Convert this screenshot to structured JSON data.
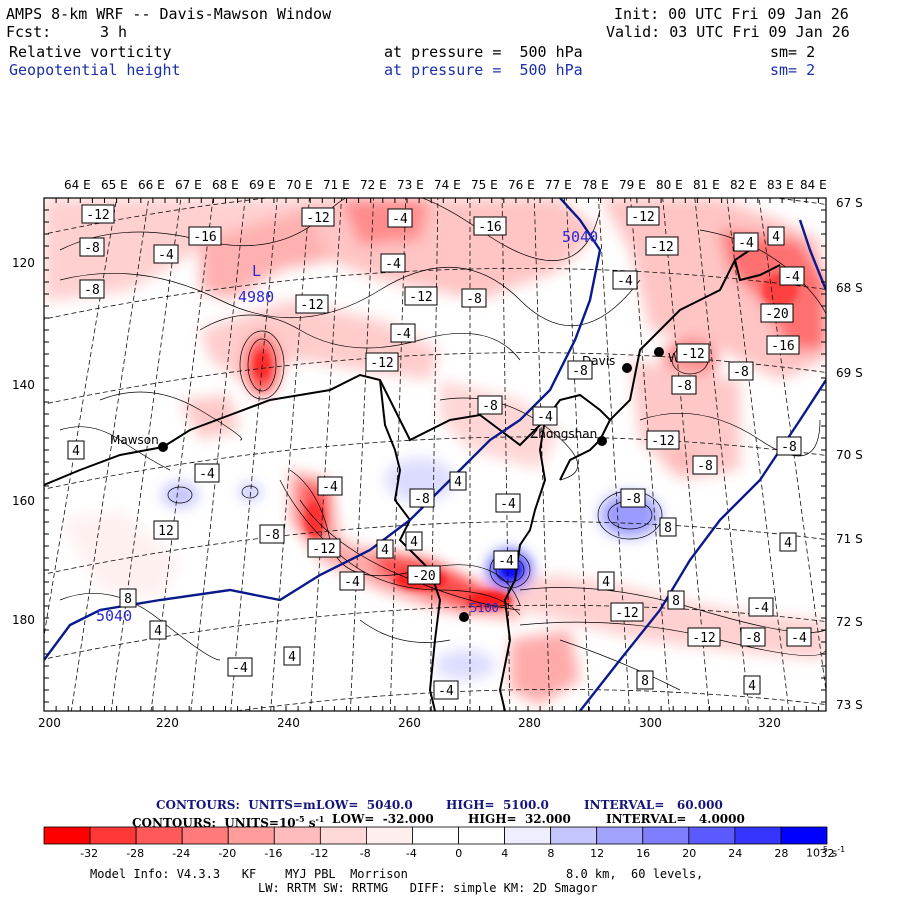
{
  "header": {
    "title": "AMPS 8-km WRF -- Davis-Mawson Window",
    "init": "Init: 00 UTC Fri 09 Jan 26",
    "fcst_label": "Fcst:",
    "fcst_value": "3 h",
    "valid": "Valid: 03 UTC Fri 09 Jan 26",
    "field1": {
      "name": "Relative vorticity",
      "pressure": "at pressure =  500 hPa",
      "smooth": "sm= 2"
    },
    "field2": {
      "name": "Geopotential height",
      "pressure": "at pressure =  500 hPa",
      "smooth": "sm= 2"
    }
  },
  "axes": {
    "top_lon": [
      "64 E",
      "65 E",
      "66 E",
      "67 E",
      "68 E",
      "69 E",
      "70 E",
      "71 E",
      "72 E",
      "73 E",
      "74 E",
      "75 E",
      "76 E",
      "77 E",
      "78 E",
      "79 E",
      "80 E",
      "81 E",
      "82 E",
      "83 E",
      "84 E"
    ],
    "right_lat": [
      "67 S",
      "68 S",
      "69 S",
      "70 S",
      "71 S",
      "72 S",
      "73 S"
    ],
    "left_y": [
      "120",
      "140",
      "160",
      "180"
    ],
    "bottom_x": [
      "200",
      "220",
      "240",
      "260",
      "280",
      "300",
      "320"
    ]
  },
  "map": {
    "stations": [
      {
        "name": "Mawson",
        "key": "mawson"
      },
      {
        "name": "Davis",
        "key": "davis"
      },
      {
        "name": "Zhongshan",
        "key": "zhongshan"
      },
      {
        "name": "WHP",
        "key": "whp"
      }
    ],
    "low_marker": {
      "symbol": "L",
      "value": "4980"
    },
    "height_labels": [
      "5040",
      "5040",
      "5100"
    ],
    "vort_labels": [
      "-12",
      "-8",
      "-4",
      "-8",
      "-16",
      "-12",
      "-4",
      "-16",
      "-12",
      "-12",
      "-4",
      "4",
      "-4",
      "-4",
      "-12",
      "-8",
      "-12",
      "-4",
      "-12",
      "-8",
      "-20",
      "-16",
      "-12",
      "-8",
      "-8",
      "-8",
      "-4",
      "-12",
      "-8",
      "-8",
      "-4",
      "4",
      "-4",
      "-4",
      "-8",
      "12",
      "8",
      "-8",
      "-8",
      "-12",
      "4",
      "-4",
      "4",
      "-4",
      "-20",
      "4",
      "-4",
      "8",
      "4",
      "-12",
      "-12",
      "-8",
      "-4",
      "-4",
      "4",
      "8",
      "4",
      "-4",
      "4",
      "-4",
      "8",
      "4"
    ]
  },
  "contour_info": {
    "line1": {
      "label": "CONTOURS:  UNITS=m",
      "low": "LOW=  5040.0",
      "high": "HIGH=  5100.0",
      "interval": "INTERVAL=   60.000"
    },
    "line2": {
      "label": "CONTOURS:  UNITS=10",
      "exp": "-5",
      "units_tail": " s",
      "exp2": "-1",
      "low": "LOW=  -32.000",
      "high": "HIGH=  32.000",
      "interval": "INTERVAL=   4.0000"
    }
  },
  "colorbar": {
    "colors": [
      "#ff0000",
      "#ff3737",
      "#ff5a5a",
      "#ff7a7a",
      "#ff9c9c",
      "#ffbcbc",
      "#ffd8d8",
      "#ffeeee",
      "#ffffff",
      "#ffffff",
      "#eeeeff",
      "#c6c6ff",
      "#a2a2ff",
      "#7e7eff",
      "#5a5aff",
      "#3535ff",
      "#0000ff"
    ],
    "labels": [
      "-32",
      "-28",
      "-24",
      "-20",
      "-16",
      "-12",
      "-8",
      "-4",
      "0",
      "4",
      "8",
      "12",
      "16",
      "20",
      "24",
      "28",
      "32"
    ],
    "unit_label": "10",
    "unit_exp": "-5",
    "unit_tail": " s",
    "unit_exp2": "-1"
  },
  "footer": {
    "line1_left": "Model Info: V4.3.3   KF    MYJ PBL  Morrison",
    "line1_right": "8.0 km,  60 levels,",
    "line2": "LW: RRTM SW: RRTMG   DIFF: simple KM: 2D Smagor"
  }
}
